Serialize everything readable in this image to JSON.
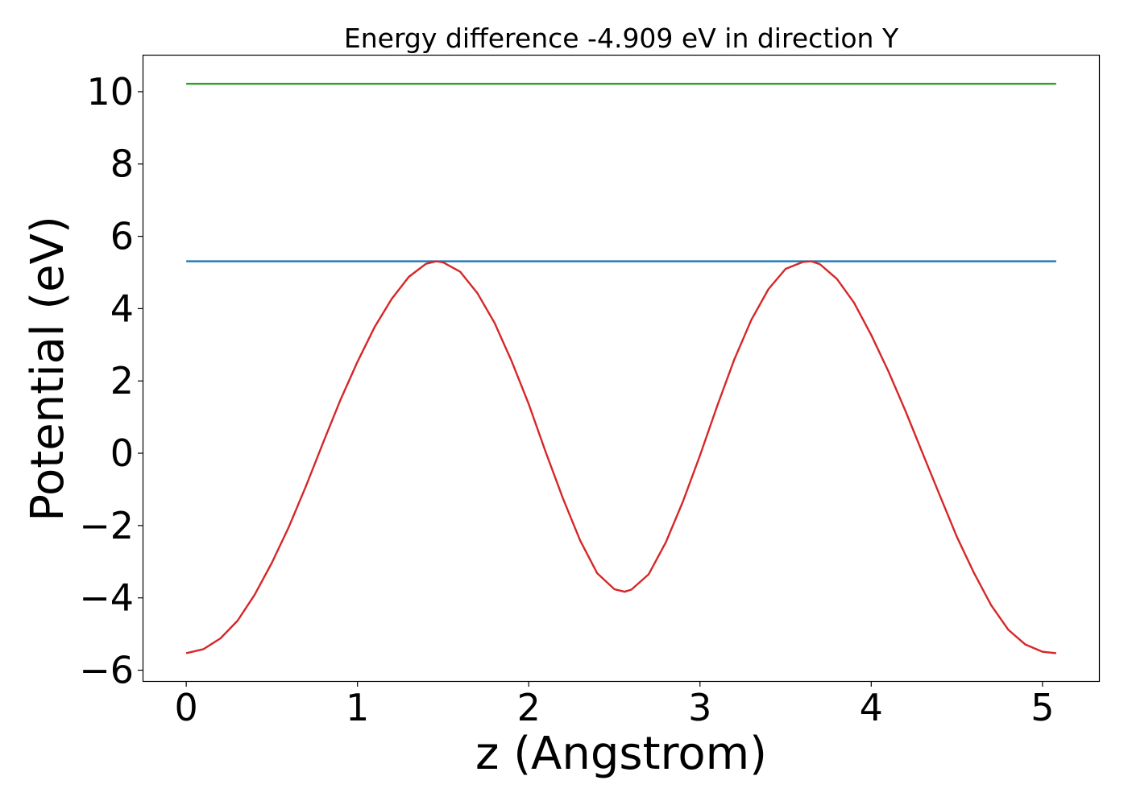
{
  "chart_data": {
    "type": "line",
    "title": "Energy difference -4.909 eV in direction Y",
    "xlabel": "z (Angstrom)",
    "ylabel": "Potential (eV)",
    "xlim": [
      -0.25,
      5.33
    ],
    "ylim": [
      -6.3,
      11.0
    ],
    "xticks": [
      0,
      1,
      2,
      3,
      4,
      5
    ],
    "yticks": [
      -6,
      -4,
      -2,
      0,
      2,
      4,
      6,
      8,
      10
    ],
    "xtick_labels": [
      "0",
      "1",
      "2",
      "3",
      "4",
      "5"
    ],
    "ytick_labels": [
      "−6",
      "−4",
      "−2",
      "0",
      "2",
      "4",
      "6",
      "8",
      "10"
    ],
    "grid": false,
    "legend": "none",
    "series": [
      {
        "color": "#2ca02c",
        "x": [
          0,
          5.08
        ],
        "y": [
          10.22,
          10.22
        ]
      },
      {
        "color": "#1f77b4",
        "x": [
          0,
          5.08
        ],
        "y": [
          5.31,
          5.31
        ]
      },
      {
        "color": "#d62728",
        "x": [
          0.0,
          0.1,
          0.2,
          0.3,
          0.4,
          0.5,
          0.6,
          0.7,
          0.8,
          0.9,
          1.0,
          1.1,
          1.2,
          1.3,
          1.4,
          1.46,
          1.5,
          1.6,
          1.7,
          1.8,
          1.9,
          2.0,
          2.1,
          2.2,
          2.3,
          2.4,
          2.5,
          2.56,
          2.6,
          2.7,
          2.8,
          2.9,
          3.0,
          3.1,
          3.2,
          3.3,
          3.4,
          3.5,
          3.6,
          3.65,
          3.7,
          3.8,
          3.9,
          4.0,
          4.1,
          4.2,
          4.3,
          4.4,
          4.5,
          4.6,
          4.7,
          4.8,
          4.9,
          5.0,
          5.08
        ],
        "y": [
          -5.53,
          -5.42,
          -5.12,
          -4.63,
          -3.91,
          -3.03,
          -2.03,
          -0.9,
          0.3,
          1.47,
          2.53,
          3.49,
          4.27,
          4.88,
          5.24,
          5.31,
          5.28,
          5.02,
          4.43,
          3.61,
          2.55,
          1.36,
          0.02,
          -1.25,
          -2.41,
          -3.32,
          -3.76,
          -3.83,
          -3.77,
          -3.35,
          -2.47,
          -1.34,
          -0.06,
          1.3,
          2.59,
          3.69,
          4.54,
          5.1,
          5.29,
          5.31,
          5.23,
          4.82,
          4.16,
          3.27,
          2.27,
          1.17,
          0.0,
          -1.16,
          -2.31,
          -3.31,
          -4.2,
          -4.88,
          -5.29,
          -5.49,
          -5.53
        ]
      }
    ]
  }
}
